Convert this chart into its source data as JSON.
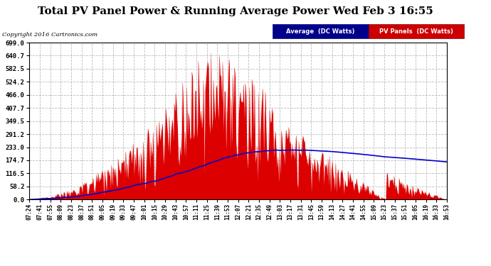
{
  "title": "Total PV Panel Power & Running Average Power Wed Feb 3 16:55",
  "copyright": "Copyright 2016 Cartronics.com",
  "legend_avg": "Average  (DC Watts)",
  "legend_pv": "PV Panels  (DC Watts)",
  "yticks": [
    0.0,
    58.2,
    116.5,
    174.7,
    233.0,
    291.2,
    349.5,
    407.7,
    466.0,
    524.2,
    582.5,
    640.7,
    699.0
  ],
  "ymax": 699.0,
  "ymin": 0.0,
  "bg_color": "#ffffff",
  "grid_color": "#aaaaaa",
  "bar_color": "#dd0000",
  "avg_color": "#0000cc",
  "title_fontsize": 11,
  "xtick_labels": [
    "07:24",
    "07:41",
    "07:55",
    "08:09",
    "08:23",
    "08:37",
    "08:51",
    "09:05",
    "09:19",
    "09:33",
    "09:47",
    "10:01",
    "10:15",
    "10:29",
    "10:43",
    "10:57",
    "11:11",
    "11:25",
    "11:39",
    "11:53",
    "12:07",
    "12:21",
    "12:35",
    "12:49",
    "13:03",
    "13:17",
    "13:31",
    "13:45",
    "13:59",
    "14:13",
    "14:27",
    "14:41",
    "14:55",
    "15:09",
    "15:23",
    "15:37",
    "15:51",
    "16:05",
    "16:19",
    "16:33",
    "16:53"
  ],
  "n_points": 500
}
